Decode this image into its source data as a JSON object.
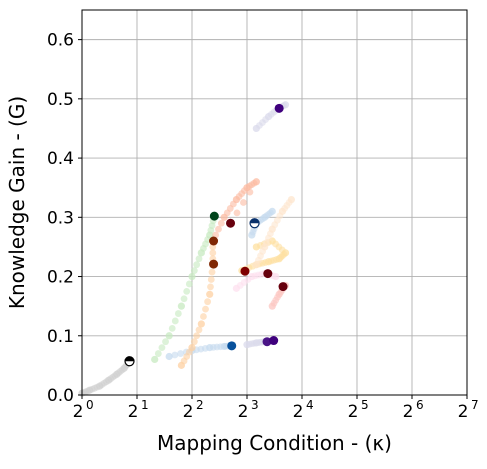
{
  "chart_data": {
    "type": "scatter",
    "xlabel": "Mapping Condition - (κ)",
    "ylabel": "Knowledge Gain - (G)",
    "x_scale": "log2",
    "xlim": [
      1,
      128
    ],
    "ylim": [
      0,
      0.65
    ],
    "x_ticks": [
      {
        "base": "2",
        "exp": "0",
        "value": 1
      },
      {
        "base": "2",
        "exp": "1",
        "value": 2
      },
      {
        "base": "2",
        "exp": "2",
        "value": 4
      },
      {
        "base": "2",
        "exp": "3",
        "value": 8
      },
      {
        "base": "2",
        "exp": "4",
        "value": 16
      },
      {
        "base": "2",
        "exp": "5",
        "value": 32
      },
      {
        "base": "2",
        "exp": "6",
        "value": 64
      },
      {
        "base": "2",
        "exp": "7",
        "value": 128
      }
    ],
    "y_ticks": [
      "0.0",
      "0.1",
      "0.2",
      "0.3",
      "0.4",
      "0.5",
      "0.6"
    ],
    "grid": true,
    "legend": "none",
    "series": [
      {
        "color": "#000000",
        "faded": "#d0d0d0",
        "points": [
          [
            1.0,
            0.003
          ],
          [
            1.1,
            0.008
          ],
          [
            1.25,
            0.015
          ],
          [
            1.4,
            0.025
          ],
          [
            1.55,
            0.035
          ],
          [
            1.7,
            0.045
          ],
          [
            1.82,
            0.057
          ]
        ]
      },
      {
        "color": "#08306b",
        "faded": "#c6dbef",
        "points": [
          [
            3.0,
            0.065
          ],
          [
            4.0,
            0.075
          ],
          [
            5.0,
            0.08
          ],
          [
            6.0,
            0.082
          ],
          [
            6.5,
            0.083
          ]
        ]
      },
      {
        "color": "#3f007d",
        "faded": "#dadaeb",
        "points": [
          [
            8.0,
            0.085
          ],
          [
            9.0,
            0.088
          ],
          [
            10.0,
            0.09
          ],
          [
            11.0,
            0.092
          ]
        ]
      },
      {
        "color": "#006d2c",
        "faded": "#c7e9c0",
        "points": [
          [
            2.5,
            0.06
          ],
          [
            3.0,
            0.1
          ],
          [
            3.5,
            0.15
          ],
          [
            4.0,
            0.2
          ],
          [
            4.5,
            0.24
          ],
          [
            5.0,
            0.27
          ],
          [
            5.3,
            0.302
          ]
        ]
      },
      {
        "color": "#67000d",
        "faded": "#fcbba1",
        "points": [
          [
            5.2,
            0.26
          ],
          [
            6.0,
            0.3
          ],
          [
            7.0,
            0.33
          ],
          [
            8.0,
            0.35
          ],
          [
            9.0,
            0.36
          ],
          [
            6.5,
            0.29
          ]
        ]
      },
      {
        "color": "#7f2704",
        "faded": "#fdd0a2",
        "points": [
          [
            3.5,
            0.05
          ],
          [
            4.0,
            0.08
          ],
          [
            4.5,
            0.12
          ],
          [
            5.0,
            0.17
          ],
          [
            5.2,
            0.22
          ],
          [
            5.2,
            0.26
          ]
        ]
      },
      {
        "color": "#7a0177",
        "faded": "#fde0a0",
        "points": [
          [
            7.5,
            0.21
          ],
          [
            9.0,
            0.22
          ],
          [
            10.5,
            0.225
          ],
          [
            12.0,
            0.23
          ],
          [
            13.0,
            0.24
          ],
          [
            11.0,
            0.26
          ],
          [
            9.0,
            0.25
          ]
        ]
      },
      {
        "color": "#67001f",
        "faded": "#fde0ef",
        "points": [
          [
            7.0,
            0.18
          ],
          [
            8.5,
            0.2
          ],
          [
            10.0,
            0.205
          ],
          [
            11.5,
            0.2
          ]
        ]
      },
      {
        "color": "#49006a",
        "faded": "#fcc5c0",
        "points": [
          [
            11.0,
            0.15
          ],
          [
            12.0,
            0.17
          ],
          [
            13.0,
            0.185
          ]
        ]
      },
      {
        "color": "#08519c",
        "faded": "#c6dbef",
        "points": [
          [
            8.5,
            0.27
          ],
          [
            9.0,
            0.29
          ],
          [
            10.0,
            0.3
          ],
          [
            11.0,
            0.31
          ]
        ]
      },
      {
        "color": "#fd8d3c",
        "faded": "#fee6ce",
        "points": [
          [
            9.0,
            0.22
          ],
          [
            10.0,
            0.25
          ],
          [
            11.0,
            0.28
          ],
          [
            12.5,
            0.31
          ],
          [
            14.0,
            0.33
          ]
        ]
      },
      {
        "color": "#3f007d",
        "faded": "#dadaeb",
        "points": [
          [
            9.0,
            0.45
          ],
          [
            10.5,
            0.47
          ],
          [
            12.0,
            0.485
          ],
          [
            13.0,
            0.49
          ]
        ]
      }
    ],
    "highlights": [
      {
        "color": "#000000",
        "x": 1.82,
        "y": 0.057,
        "shape": "half"
      },
      {
        "color": "#08519c",
        "x": 6.6,
        "y": 0.083,
        "shape": "dot"
      },
      {
        "color": "#4a1486",
        "x": 10.3,
        "y": 0.09,
        "shape": "dot"
      },
      {
        "color": "#3f007d",
        "x": 11.2,
        "y": 0.092,
        "shape": "dot"
      },
      {
        "color": "#67000d",
        "x": 12.6,
        "y": 0.183,
        "shape": "dot"
      },
      {
        "color": "#7f0000",
        "x": 7.8,
        "y": 0.209,
        "shape": "dot"
      },
      {
        "color": "#67000d",
        "x": 10.4,
        "y": 0.205,
        "shape": "dot"
      },
      {
        "color": "#7f2704",
        "x": 5.25,
        "y": 0.221,
        "shape": "dot"
      },
      {
        "color": "#7f2704",
        "x": 5.25,
        "y": 0.26,
        "shape": "dot"
      },
      {
        "color": "#67000d",
        "x": 6.5,
        "y": 0.29,
        "shape": "dot"
      },
      {
        "color": "#00441b",
        "x": 5.3,
        "y": 0.302,
        "shape": "dot"
      },
      {
        "color": "#08306b",
        "x": 8.8,
        "y": 0.29,
        "shape": "half"
      },
      {
        "color": "#3f007d",
        "x": 12.0,
        "y": 0.484,
        "shape": "dot"
      }
    ]
  }
}
